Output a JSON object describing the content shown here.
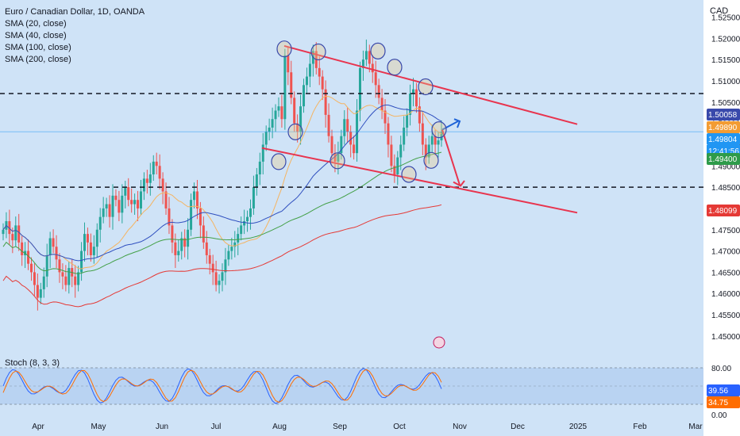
{
  "legend": {
    "title": "Euro / Canadian Dollar, 1D, OANDA",
    "sma20": "SMA (20, close)",
    "sma40": "SMA (40, close)",
    "sma100": "SMA (100, close)",
    "sma200": "SMA (200, close)"
  },
  "currency": "CAD",
  "stoch_label": "Stoch (8, 3, 3)",
  "colors": {
    "background": "#cfe3f7",
    "up_candle": "#26a69a",
    "down_candle": "#ef5350",
    "sma20": "#f5b461",
    "sma40": "#2f4fbf",
    "sma100": "#43a047",
    "sma200": "#e53935",
    "channel": "#e8344e",
    "arrow_up": "#1e63d8",
    "stoch_k": "#2962ff",
    "stoch_d": "#ff6d00"
  },
  "chart_data": {
    "type": "candlestick",
    "title": "Euro / Canadian Dollar, 1D, OANDA",
    "x_tick_labels": [
      "Apr",
      "May",
      "Jun",
      "Jul",
      "Aug",
      "Sep",
      "Oct",
      "Nov",
      "Dec",
      "2025",
      "Feb",
      "Mar"
    ],
    "y_tick_labels": [
      "1.52500",
      "1.52000",
      "1.51500",
      "1.51000",
      "1.50500",
      "1.50000",
      "1.49500",
      "1.49000",
      "1.48500",
      "1.48000",
      "1.47500",
      "1.47000",
      "1.46500",
      "1.46000",
      "1.45500",
      "1.45000"
    ],
    "ylim": [
      1.447,
      1.529
    ],
    "price_badges": [
      {
        "label": "1.50058",
        "color": "#3949ab"
      },
      {
        "label": "1.49890",
        "color": "#f39c33"
      },
      {
        "label": "1.49804",
        "color": "#2196f3",
        "sub": "12:41:56"
      },
      {
        "label": "1.49400",
        "color": "#2e9b4a"
      },
      {
        "label": "1.48099",
        "color": "#e53935"
      }
    ],
    "horizontal_levels": [
      1.507,
      1.485
    ],
    "channel_upper": [
      [
        1.5182,
        1.4998
      ]
    ],
    "channel_lower": [
      [
        1.4942,
        1.479
      ]
    ],
    "close_path": [
      1.475,
      1.477,
      1.474,
      1.4725,
      1.476,
      1.472,
      1.469,
      1.47,
      1.467,
      1.465,
      1.462,
      1.459,
      1.461,
      1.464,
      1.469,
      1.473,
      1.471,
      1.468,
      1.465,
      1.464,
      1.462,
      1.466,
      1.464,
      1.462,
      1.465,
      1.47,
      1.474,
      1.472,
      1.469,
      1.471,
      1.475,
      1.478,
      1.48,
      1.481,
      1.478,
      1.483,
      1.482,
      1.479,
      1.483,
      1.485,
      1.482,
      1.481,
      1.482,
      1.48,
      1.484,
      1.487,
      1.486,
      1.488,
      1.491,
      1.49,
      1.487,
      1.484,
      1.48,
      1.476,
      1.472,
      1.469,
      1.47,
      1.473,
      1.471,
      1.475,
      1.482,
      1.484,
      1.48,
      1.476,
      1.472,
      1.469,
      1.467,
      1.465,
      1.462,
      1.463,
      1.465,
      1.468,
      1.47,
      1.471,
      1.472,
      1.474,
      1.476,
      1.477,
      1.478,
      1.48,
      1.485,
      1.488,
      1.491,
      1.495,
      1.498,
      1.499,
      1.501,
      1.503,
      1.504,
      1.501,
      1.516,
      1.512,
      1.506,
      1.5,
      1.498,
      1.504,
      1.509,
      1.511,
      1.514,
      1.517,
      1.513,
      1.511,
      1.508,
      1.502,
      1.497,
      1.493,
      1.491,
      1.493,
      1.497,
      1.501,
      1.498,
      1.495,
      1.493,
      1.503,
      1.513,
      1.515,
      1.517,
      1.514,
      1.512,
      1.509,
      1.506,
      1.503,
      1.5,
      1.495,
      1.49,
      1.488,
      1.492,
      1.495,
      1.499,
      1.502,
      1.507,
      1.508,
      1.504,
      1.5,
      1.495,
      1.492,
      1.495,
      1.497,
      1.495,
      1.496,
      1.498
    ],
    "stochastic": {
      "label": "Stoch (8, 3, 3)",
      "levels": [
        "80.00",
        "0.00"
      ],
      "k_value": "39.56",
      "d_value": "34.75"
    }
  }
}
